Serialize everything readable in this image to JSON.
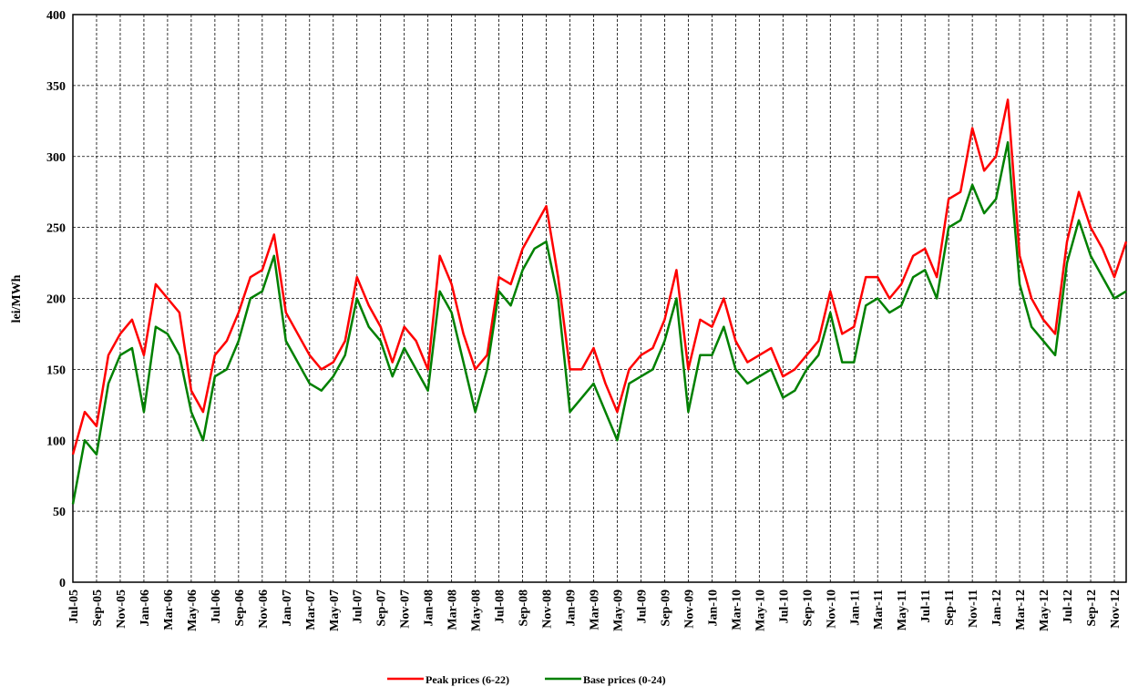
{
  "chart_data": {
    "type": "line",
    "y_label": "lei/MWh",
    "categories": [
      "Jul-05",
      null,
      "Sep-05",
      null,
      "Nov-05",
      null,
      "Jan-06",
      null,
      "Mar-06",
      null,
      "May-06",
      null,
      "Jul-06",
      null,
      "Sep-06",
      null,
      "Nov-06",
      null,
      "Jan-07",
      null,
      "Mar-07",
      null,
      "May-07",
      null,
      "Jul-07",
      null,
      "Sep-07",
      null,
      "Nov-07",
      null,
      "Jan-08",
      null,
      "Mar-08",
      null,
      "May-08",
      null,
      "Jul-08",
      null,
      "Sep-08",
      null,
      "Nov-08",
      null,
      "Jan-09",
      null,
      "Mar-09",
      null,
      "May-09",
      null,
      "Jul-09",
      null,
      "Sep-09",
      null,
      "Nov-09",
      null,
      "Jan-10",
      null,
      "Mar-10",
      null,
      "May-10",
      null,
      "Jul-10",
      null,
      "Sep-10",
      null,
      "Nov-10",
      null,
      "Jan-11",
      null,
      "Mar-11",
      null,
      "May-11",
      null,
      "Jul-11",
      null,
      "Sep-11",
      null,
      "Nov-11",
      null,
      "Jan-12",
      null,
      "Mar-12",
      null,
      "May-12",
      null,
      "Jul-12",
      null,
      "Sep-12",
      null,
      "Nov-12",
      null
    ],
    "series": [
      {
        "name": "Peak prices (6-22)",
        "color": "#ff0000",
        "values": [
          90,
          120,
          110,
          160,
          175,
          185,
          160,
          210,
          200,
          190,
          135,
          120,
          160,
          170,
          190,
          215,
          220,
          245,
          190,
          175,
          160,
          150,
          155,
          170,
          215,
          195,
          180,
          155,
          180,
          170,
          150,
          230,
          210,
          175,
          150,
          160,
          215,
          210,
          235,
          250,
          265,
          215,
          150,
          150,
          165,
          140,
          120,
          150,
          160,
          165,
          185,
          220,
          150,
          185,
          180,
          200,
          170,
          155,
          160,
          165,
          145,
          150,
          160,
          170,
          205,
          175,
          180,
          215,
          215,
          200,
          210,
          230,
          235,
          215,
          270,
          275,
          320,
          290,
          300,
          340,
          230,
          200,
          185,
          175,
          240,
          275,
          250,
          235,
          215,
          240
        ]
      },
      {
        "name": "Base prices (0-24)",
        "color": "#008000",
        "values": [
          55,
          100,
          90,
          140,
          160,
          165,
          120,
          180,
          175,
          160,
          120,
          100,
          145,
          150,
          170,
          200,
          205,
          230,
          170,
          155,
          140,
          135,
          145,
          160,
          200,
          180,
          170,
          145,
          165,
          150,
          135,
          205,
          190,
          155,
          120,
          150,
          205,
          195,
          220,
          235,
          240,
          200,
          120,
          130,
          140,
          120,
          100,
          140,
          145,
          150,
          170,
          200,
          120,
          160,
          160,
          180,
          150,
          140,
          145,
          150,
          130,
          135,
          150,
          160,
          190,
          155,
          155,
          195,
          200,
          190,
          195,
          215,
          220,
          200,
          250,
          255,
          280,
          260,
          270,
          310,
          210,
          180,
          170,
          160,
          225,
          255,
          230,
          215,
          200,
          205
        ]
      }
    ],
    "ylim": [
      0,
      400
    ],
    "yticks": [
      0,
      50,
      100,
      150,
      200,
      250,
      300,
      350,
      400
    ],
    "grid": true,
    "legend": "bottom"
  }
}
